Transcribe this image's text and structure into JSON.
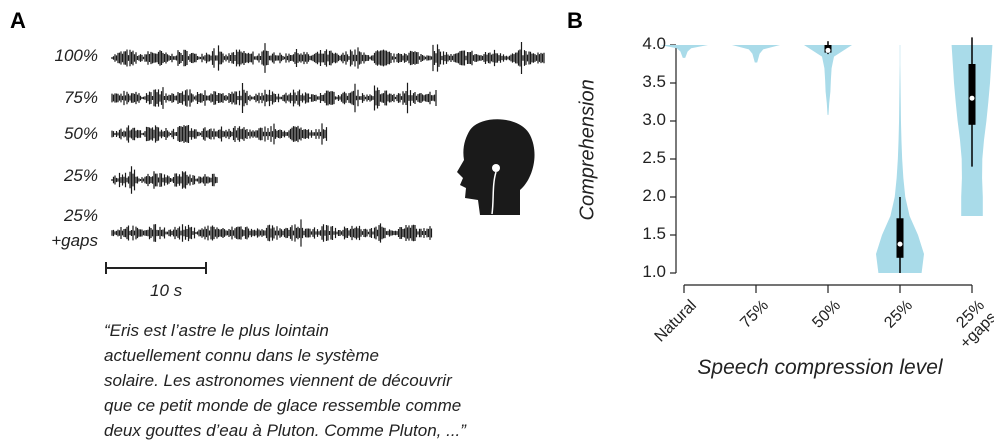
{
  "panel_a": {
    "label": "A",
    "waveform_labels": [
      "100%",
      "75%",
      "50%",
      "25%",
      "25%\n+gaps"
    ],
    "scale_bar_label": "10 s",
    "quote_lines": [
      "“Eris est l’astre le plus lointain",
      "actuellement connu dans le système",
      "solaire. Les astronomes viennent de découvrir",
      "que ce petit monde de glace ressemble comme",
      "deux gouttes d’eau à Pluton. Comme Pluton, ...”"
    ]
  },
  "chart_data": {
    "type": "violin",
    "panel_label": "B",
    "ylabel": "Comprehension",
    "xlabel": "Speech compression level",
    "categories": [
      "Natural",
      "75%",
      "50%",
      "25%",
      "25%\n+gaps"
    ],
    "color": "#a9dbe9",
    "ylim": [
      1.0,
      4.0
    ],
    "yticks": [
      {
        "value": 1.0,
        "label": "1.0"
      },
      {
        "value": 1.5,
        "label": "1.5"
      },
      {
        "value": 2.0,
        "label": "2.0"
      },
      {
        "value": 2.5,
        "label": "2.5"
      },
      {
        "value": 3.0,
        "label": "3.0"
      },
      {
        "value": 3.5,
        "label": "3.5"
      },
      {
        "value": 4.0,
        "label": "4.0"
      }
    ],
    "violins": [
      {
        "range": [
          3.83,
          4.0
        ],
        "density": [
          0.05,
          0.1,
          0.15,
          0.3,
          1.0
        ]
      },
      {
        "range": [
          3.77,
          4.0
        ],
        "density": [
          0.05,
          0.1,
          0.15,
          0.3,
          1.0
        ]
      },
      {
        "range": [
          3.08,
          4.0
        ],
        "density": [
          0.02,
          0.05,
          0.1,
          0.12,
          0.15,
          0.25,
          1.0
        ],
        "min": 3.88,
        "q1": 3.9,
        "median": 3.93,
        "q3": 4.0,
        "max": 4.05
      },
      {
        "range": [
          1.0,
          4.0
        ],
        "density": [
          0.9,
          1.0,
          0.75,
          0.4,
          0.22,
          0.14,
          0.09,
          0.06,
          0.04,
          0.03,
          0.02,
          0.01,
          0.01
        ],
        "min": 1.0,
        "q1": 1.2,
        "median": 1.38,
        "q3": 1.72,
        "max": 2.0
      },
      {
        "range": [
          1.75,
          4.0
        ],
        "density": [
          0.45,
          0.45,
          0.42,
          0.43,
          0.5,
          0.6,
          0.68,
          0.75,
          0.8,
          0.85
        ],
        "min": 2.4,
        "q1": 2.95,
        "median": 3.3,
        "q3": 3.75,
        "max": 4.1
      }
    ]
  }
}
